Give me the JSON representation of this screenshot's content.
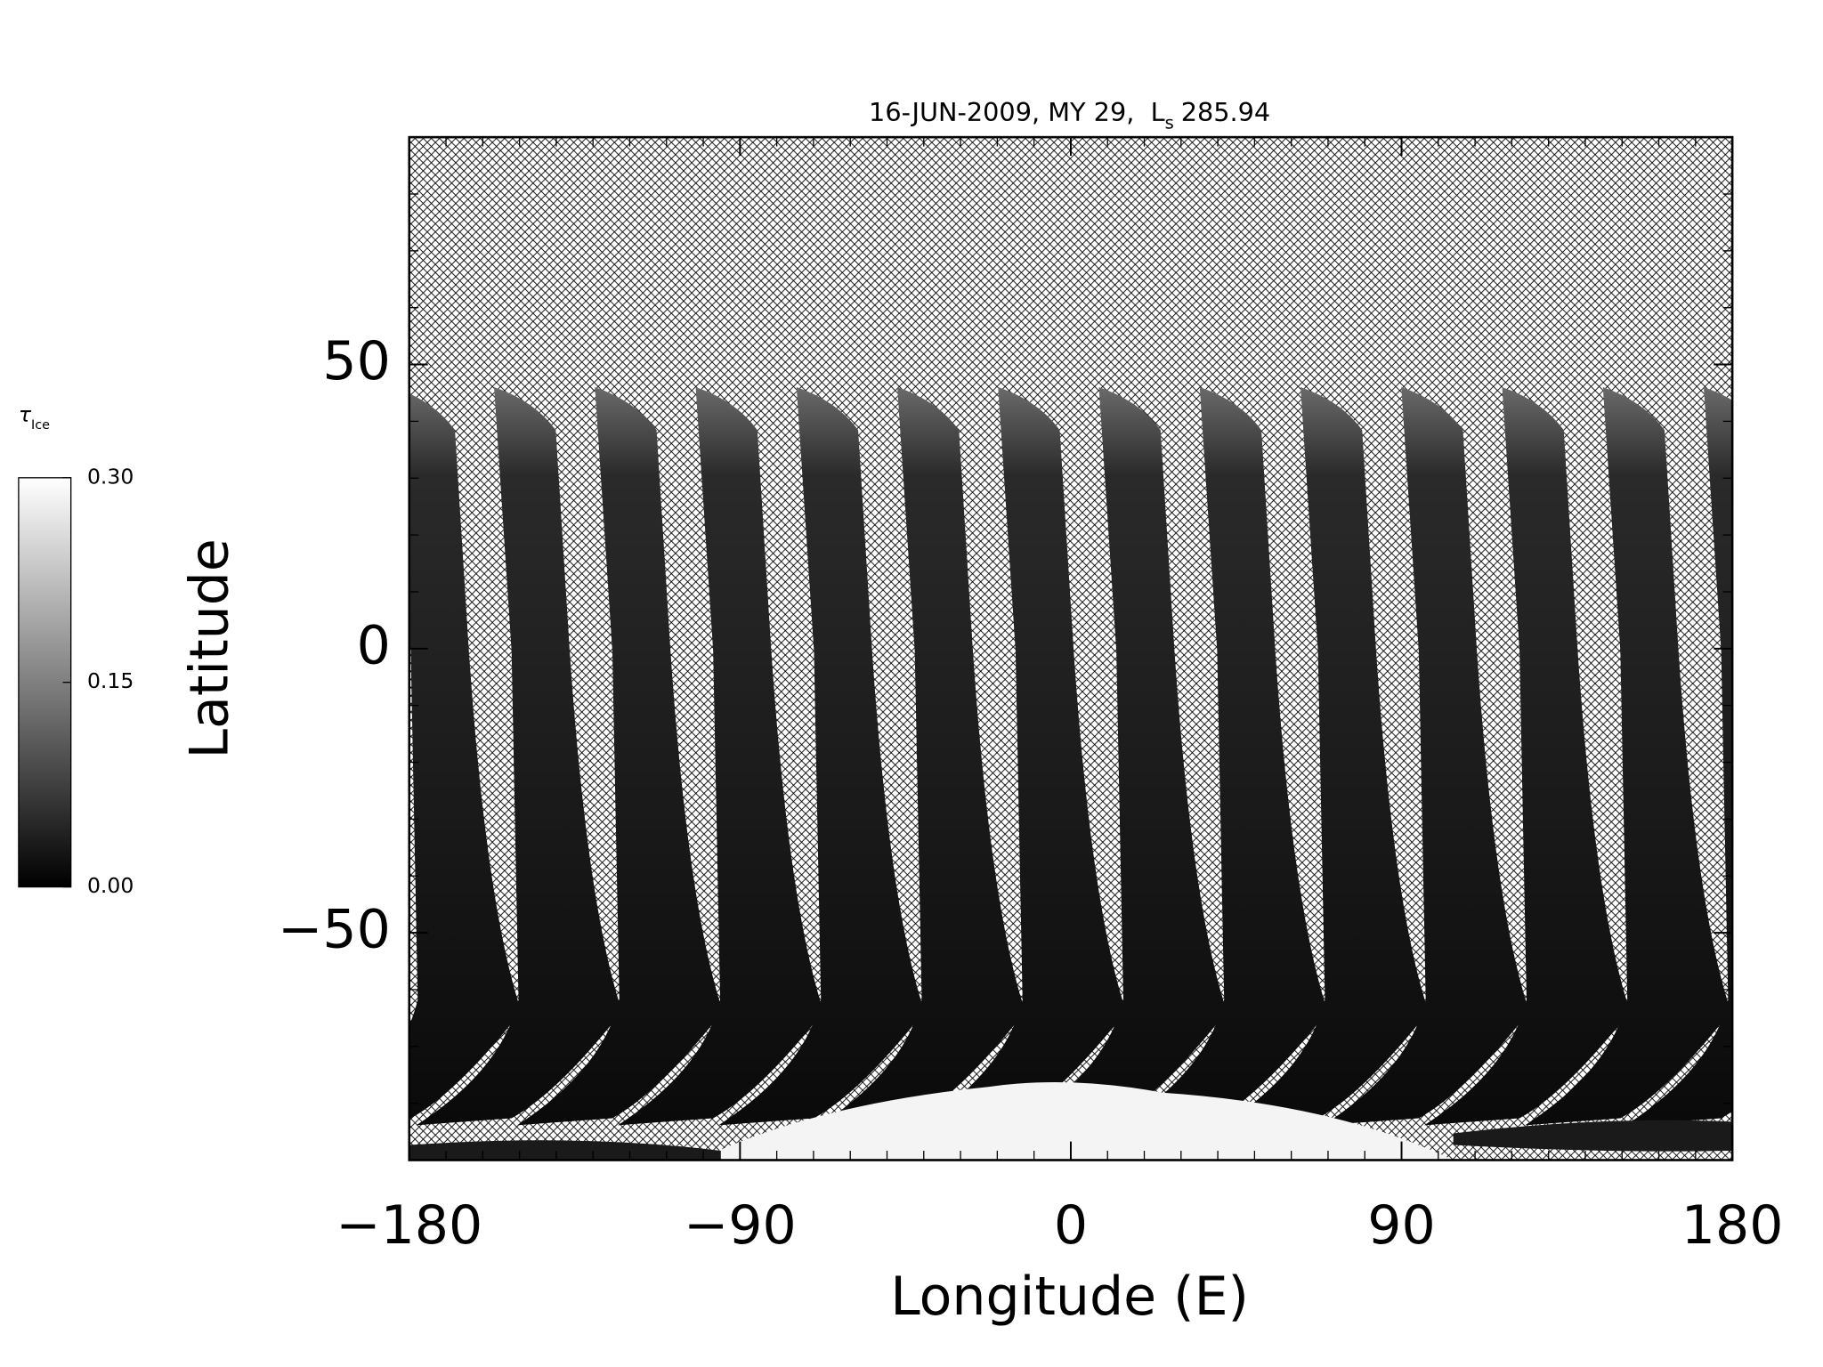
{
  "chart_data": {
    "type": "map",
    "title": {
      "date": "16-JUN-2009, MY 29,",
      "symbol": "L",
      "subscript": "s",
      "value": "285.94"
    },
    "xlabel": "Longitude (E)",
    "ylabel": "Latitude",
    "xlim": [
      -180,
      180
    ],
    "ylim": [
      -90,
      90
    ],
    "xticks": [
      {
        "value": -180,
        "label": "−180"
      },
      {
        "value": -90,
        "label": "−90"
      },
      0,
      90,
      180
    ],
    "yticks": [
      {
        "value": -50,
        "label": "−50"
      },
      0,
      50
    ],
    "minor_tick_step": 10,
    "colorbar": {
      "label": "τ",
      "label_subscript": "Ice",
      "lim": [
        0,
        0.3
      ],
      "ticks": [
        {
          "value": 0,
          "label": "0.00"
        },
        {
          "value": 0.15,
          "label": "0.15"
        },
        {
          "value": 0.3,
          "label": "0.30"
        }
      ],
      "colors": [
        "#000000",
        "#ffffff"
      ]
    }
  }
}
